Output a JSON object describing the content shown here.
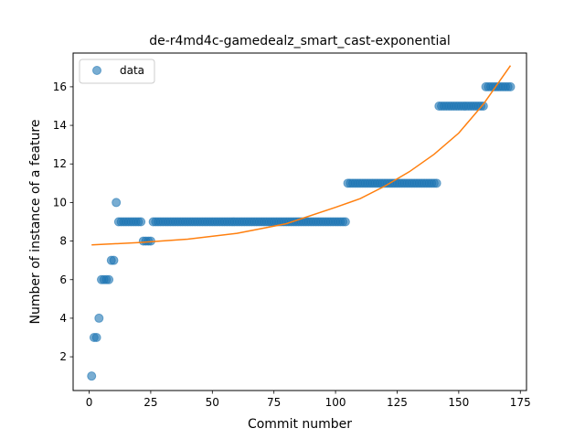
{
  "chart_data": {
    "type": "scatter",
    "title": "de-r4md4c-gamedealz_smart_cast-exponential",
    "xlabel": "Commit number",
    "ylabel": "Number of instance of a feature",
    "xlim": [
      -6.5,
      177.5
    ],
    "ylim": [
      0.25,
      17.75
    ],
    "xticks": [
      0,
      25,
      50,
      75,
      100,
      125,
      150,
      175
    ],
    "yticks": [
      2,
      4,
      6,
      8,
      10,
      12,
      14,
      16
    ],
    "grid": false,
    "legend": {
      "position": "top-left",
      "entries": [
        "data"
      ]
    },
    "series": [
      {
        "name": "data",
        "kind": "points",
        "color": "#1f77b4",
        "segments": [
          {
            "x": [
              1
            ],
            "y": 1
          },
          {
            "x": [
              2,
              3
            ],
            "y": 3
          },
          {
            "x": [
              4
            ],
            "y": 4
          },
          {
            "x": [
              5,
              6,
              7,
              8
            ],
            "y": 6
          },
          {
            "x": [
              9,
              10
            ],
            "y": 7
          },
          {
            "x": [
              11
            ],
            "y": 10
          },
          {
            "x_from": 12,
            "x_to": 21,
            "y": 9
          },
          {
            "x_from": 22,
            "x_to": 25,
            "y": 8
          },
          {
            "x_from": 26,
            "x_to": 104,
            "y": 9
          },
          {
            "x_from": 105,
            "x_to": 141,
            "y": 11
          },
          {
            "x_from": 142,
            "x_to": 160,
            "y": 15
          },
          {
            "x_from": 161,
            "x_to": 171,
            "y": 16
          }
        ]
      },
      {
        "kind": "fit-line",
        "color": "#ff7f0e",
        "x": [
          1,
          20,
          40,
          60,
          80,
          100,
          110,
          120,
          130,
          140,
          150,
          160,
          171
        ],
        "y": [
          7.8,
          7.92,
          8.1,
          8.4,
          8.9,
          9.75,
          10.2,
          10.85,
          11.6,
          12.5,
          13.6,
          15.1,
          17.1
        ]
      }
    ]
  }
}
